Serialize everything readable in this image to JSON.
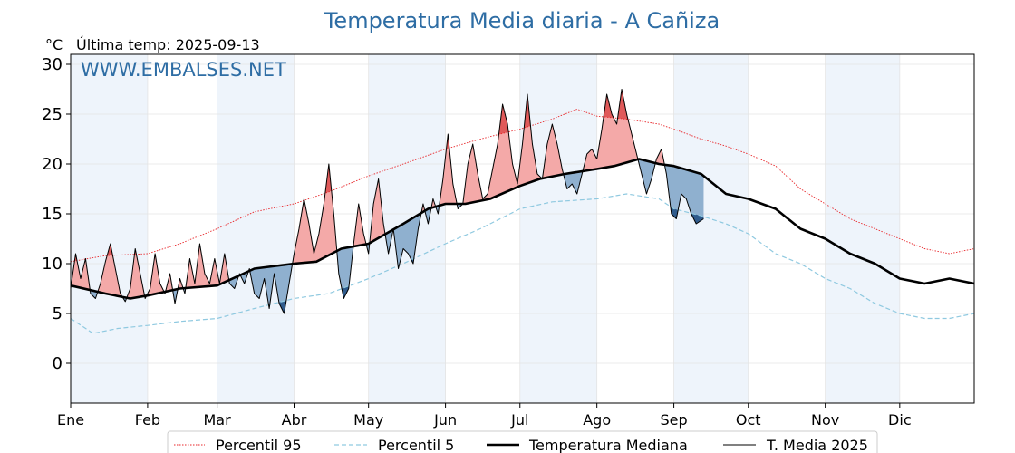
{
  "chart_data": {
    "type": "line",
    "title": "Temperatura Media diaria - A Cañiza",
    "unit": "°C",
    "subtitle": "Última temp: 2025-09-13",
    "watermark": "WWW.EMBALSES.NET",
    "xlabel": "",
    "ylabel": "",
    "xlim": [
      1,
      365
    ],
    "ylim": [
      -4,
      31
    ],
    "yticks": [
      0,
      5,
      10,
      15,
      20,
      25,
      30
    ],
    "months": [
      {
        "label": "Ene",
        "day": 1
      },
      {
        "label": "Feb",
        "day": 32
      },
      {
        "label": "Mar",
        "day": 60
      },
      {
        "label": "Abr",
        "day": 91
      },
      {
        "label": "May",
        "day": 121
      },
      {
        "label": "Jun",
        "day": 152
      },
      {
        "label": "Jul",
        "day": 182
      },
      {
        "label": "Ago",
        "day": 213
      },
      {
        "label": "Sep",
        "day": 244
      },
      {
        "label": "Oct",
        "day": 274
      },
      {
        "label": "Nov",
        "day": 305
      },
      {
        "label": "Dic",
        "day": 335
      }
    ],
    "last_day": 256,
    "grid": true,
    "legend_position": "bottom",
    "colors": {
      "p95": "#e8262a",
      "p5": "#8fc9e0",
      "median": "#000000",
      "current": "#000000",
      "above_fill": "#f4a9a8",
      "above_strong": "#e05a5a",
      "below_fill": "#8fb0cf",
      "below_strong": "#2f5b8c",
      "band": "#eef4fb"
    },
    "series": [
      {
        "key": "p95",
        "name": "Percentil 95",
        "style": "dotted",
        "points": [
          [
            1,
            10.2
          ],
          [
            15,
            10.8
          ],
          [
            32,
            11.0
          ],
          [
            45,
            12.0
          ],
          [
            60,
            13.5
          ],
          [
            75,
            15.2
          ],
          [
            91,
            16.0
          ],
          [
            105,
            17.2
          ],
          [
            121,
            18.8
          ],
          [
            135,
            20.0
          ],
          [
            152,
            21.5
          ],
          [
            166,
            22.5
          ],
          [
            182,
            23.5
          ],
          [
            195,
            24.5
          ],
          [
            205,
            25.5
          ],
          [
            213,
            24.8
          ],
          [
            225,
            24.5
          ],
          [
            238,
            24.0
          ],
          [
            244,
            23.5
          ],
          [
            255,
            22.5
          ],
          [
            265,
            21.8
          ],
          [
            274,
            21.0
          ],
          [
            285,
            19.8
          ],
          [
            295,
            17.5
          ],
          [
            305,
            16.0
          ],
          [
            315,
            14.5
          ],
          [
            325,
            13.5
          ],
          [
            335,
            12.5
          ],
          [
            345,
            11.5
          ],
          [
            355,
            11.0
          ],
          [
            365,
            11.5
          ]
        ]
      },
      {
        "key": "p5",
        "name": "Percentil 5",
        "style": "dashed",
        "points": [
          [
            1,
            4.5
          ],
          [
            10,
            3.0
          ],
          [
            20,
            3.5
          ],
          [
            32,
            3.8
          ],
          [
            45,
            4.2
          ],
          [
            60,
            4.5
          ],
          [
            75,
            5.5
          ],
          [
            91,
            6.5
          ],
          [
            105,
            7.0
          ],
          [
            121,
            8.5
          ],
          [
            135,
            10.0
          ],
          [
            152,
            12.0
          ],
          [
            166,
            13.5
          ],
          [
            182,
            15.5
          ],
          [
            195,
            16.2
          ],
          [
            213,
            16.5
          ],
          [
            225,
            17.0
          ],
          [
            238,
            16.5
          ],
          [
            244,
            15.5
          ],
          [
            255,
            14.8
          ],
          [
            265,
            14.0
          ],
          [
            274,
            13.0
          ],
          [
            285,
            11.0
          ],
          [
            295,
            10.0
          ],
          [
            305,
            8.5
          ],
          [
            315,
            7.5
          ],
          [
            325,
            6.0
          ],
          [
            335,
            5.0
          ],
          [
            345,
            4.5
          ],
          [
            355,
            4.5
          ],
          [
            365,
            5.0
          ]
        ]
      },
      {
        "key": "median",
        "name": "Temperatura Mediana",
        "style": "solid",
        "points": [
          [
            1,
            7.8
          ],
          [
            15,
            7.0
          ],
          [
            25,
            6.5
          ],
          [
            32,
            6.8
          ],
          [
            45,
            7.5
          ],
          [
            60,
            7.8
          ],
          [
            75,
            9.5
          ],
          [
            91,
            10.0
          ],
          [
            100,
            10.2
          ],
          [
            110,
            11.5
          ],
          [
            121,
            12.0
          ],
          [
            135,
            14.0
          ],
          [
            145,
            15.5
          ],
          [
            152,
            16.0
          ],
          [
            160,
            16.0
          ],
          [
            170,
            16.5
          ],
          [
            182,
            17.8
          ],
          [
            190,
            18.5
          ],
          [
            200,
            19.0
          ],
          [
            213,
            19.5
          ],
          [
            220,
            19.8
          ],
          [
            230,
            20.5
          ],
          [
            238,
            20.0
          ],
          [
            244,
            19.8
          ],
          [
            255,
            19.0
          ],
          [
            265,
            17.0
          ],
          [
            274,
            16.5
          ],
          [
            285,
            15.5
          ],
          [
            295,
            13.5
          ],
          [
            305,
            12.5
          ],
          [
            315,
            11.0
          ],
          [
            325,
            10.0
          ],
          [
            335,
            8.5
          ],
          [
            345,
            8.0
          ],
          [
            355,
            8.5
          ],
          [
            365,
            8.0
          ]
        ]
      },
      {
        "key": "current",
        "name": "T. Media 2025",
        "style": "solid",
        "points": [
          [
            1,
            7.5
          ],
          [
            3,
            11.0
          ],
          [
            5,
            8.5
          ],
          [
            7,
            10.5
          ],
          [
            9,
            7.0
          ],
          [
            11,
            6.5
          ],
          [
            13,
            8.0
          ],
          [
            15,
            10.2
          ],
          [
            17,
            12.0
          ],
          [
            19,
            9.5
          ],
          [
            21,
            7.0
          ],
          [
            23,
            6.2
          ],
          [
            25,
            7.5
          ],
          [
            27,
            11.5
          ],
          [
            29,
            9.0
          ],
          [
            31,
            6.5
          ],
          [
            33,
            7.5
          ],
          [
            35,
            11.0
          ],
          [
            37,
            8.0
          ],
          [
            39,
            7.0
          ],
          [
            41,
            9.0
          ],
          [
            43,
            6.0
          ],
          [
            45,
            8.5
          ],
          [
            47,
            7.0
          ],
          [
            49,
            10.5
          ],
          [
            51,
            8.0
          ],
          [
            53,
            12.0
          ],
          [
            55,
            9.0
          ],
          [
            57,
            8.0
          ],
          [
            59,
            10.5
          ],
          [
            61,
            8.0
          ],
          [
            63,
            11.0
          ],
          [
            65,
            8.0
          ],
          [
            67,
            7.5
          ],
          [
            69,
            9.0
          ],
          [
            71,
            8.0
          ],
          [
            73,
            9.5
          ],
          [
            75,
            7.0
          ],
          [
            77,
            6.5
          ],
          [
            79,
            8.5
          ],
          [
            81,
            5.5
          ],
          [
            83,
            9.0
          ],
          [
            85,
            6.0
          ],
          [
            87,
            5.0
          ],
          [
            89,
            8.0
          ],
          [
            91,
            11.0
          ],
          [
            93,
            13.5
          ],
          [
            95,
            16.5
          ],
          [
            97,
            14.0
          ],
          [
            99,
            11.0
          ],
          [
            101,
            13.0
          ],
          [
            103,
            16.0
          ],
          [
            105,
            20.0
          ],
          [
            107,
            15.0
          ],
          [
            109,
            9.0
          ],
          [
            111,
            6.5
          ],
          [
            113,
            7.5
          ],
          [
            115,
            12.0
          ],
          [
            117,
            16.0
          ],
          [
            119,
            13.0
          ],
          [
            121,
            11.0
          ],
          [
            123,
            16.0
          ],
          [
            125,
            18.5
          ],
          [
            127,
            14.0
          ],
          [
            129,
            11.0
          ],
          [
            131,
            13.5
          ],
          [
            133,
            9.5
          ],
          [
            135,
            11.5
          ],
          [
            137,
            11.0
          ],
          [
            139,
            10.0
          ],
          [
            141,
            13.5
          ],
          [
            143,
            16.0
          ],
          [
            145,
            14.0
          ],
          [
            147,
            16.5
          ],
          [
            149,
            15.0
          ],
          [
            151,
            18.5
          ],
          [
            153,
            23.0
          ],
          [
            155,
            18.0
          ],
          [
            157,
            15.5
          ],
          [
            159,
            16.0
          ],
          [
            161,
            20.0
          ],
          [
            163,
            22.0
          ],
          [
            165,
            19.0
          ],
          [
            167,
            16.5
          ],
          [
            169,
            17.0
          ],
          [
            171,
            19.5
          ],
          [
            173,
            22.0
          ],
          [
            175,
            26.0
          ],
          [
            177,
            24.0
          ],
          [
            179,
            20.0
          ],
          [
            181,
            18.0
          ],
          [
            183,
            22.0
          ],
          [
            185,
            27.0
          ],
          [
            187,
            22.0
          ],
          [
            189,
            19.0
          ],
          [
            191,
            18.5
          ],
          [
            193,
            22.0
          ],
          [
            195,
            24.0
          ],
          [
            197,
            22.0
          ],
          [
            199,
            19.5
          ],
          [
            201,
            17.5
          ],
          [
            203,
            18.0
          ],
          [
            205,
            17.0
          ],
          [
            207,
            19.0
          ],
          [
            209,
            21.0
          ],
          [
            211,
            21.5
          ],
          [
            213,
            20.5
          ],
          [
            215,
            23.5
          ],
          [
            217,
            27.0
          ],
          [
            219,
            25.0
          ],
          [
            221,
            24.0
          ],
          [
            223,
            27.5
          ],
          [
            225,
            25.0
          ],
          [
            227,
            23.0
          ],
          [
            229,
            21.0
          ],
          [
            231,
            19.0
          ],
          [
            233,
            17.0
          ],
          [
            235,
            18.5
          ],
          [
            237,
            20.5
          ],
          [
            239,
            21.5
          ],
          [
            241,
            19.0
          ],
          [
            243,
            15.0
          ],
          [
            245,
            14.5
          ],
          [
            247,
            17.0
          ],
          [
            249,
            16.5
          ],
          [
            251,
            15.0
          ],
          [
            253,
            14.0
          ],
          [
            256,
            14.5
          ]
        ]
      }
    ]
  }
}
